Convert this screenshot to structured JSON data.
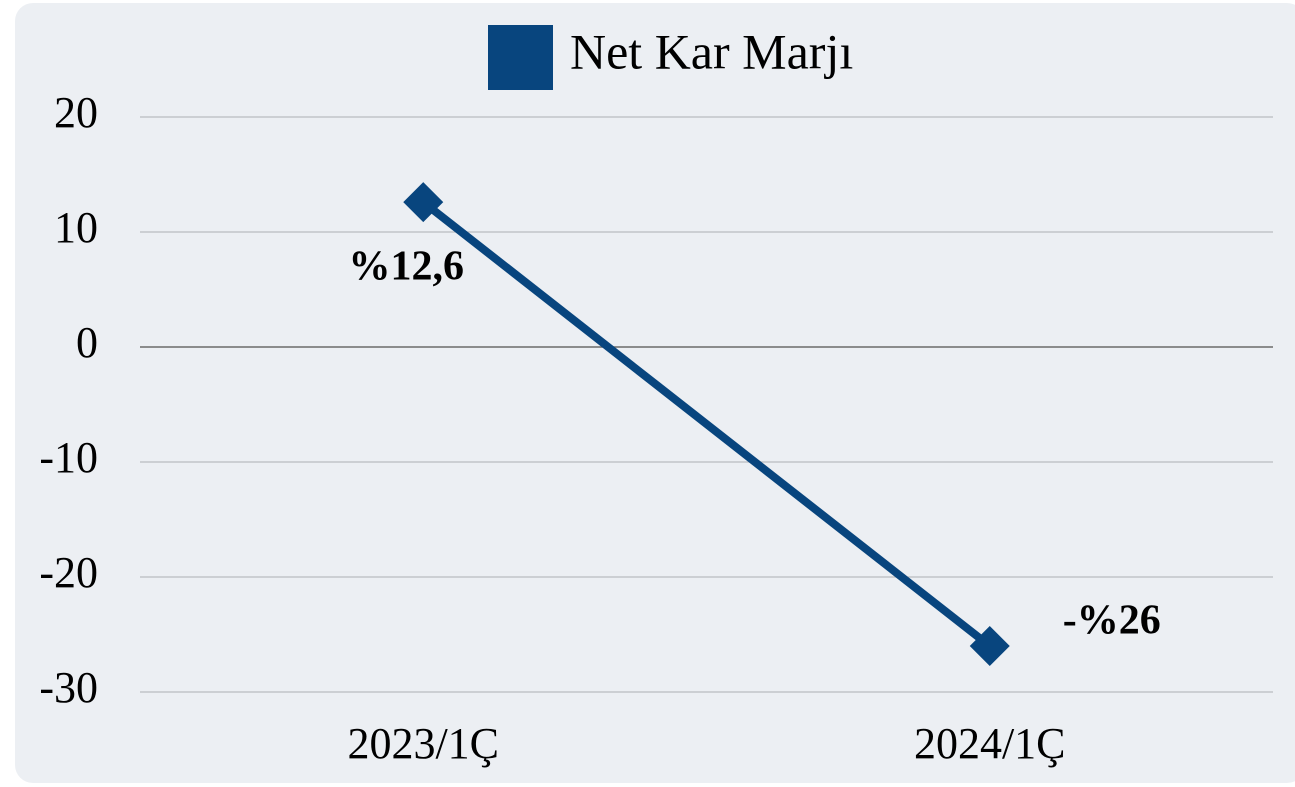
{
  "chart_data": {
    "type": "line",
    "categories": [
      "2023/1Ç",
      "2024/1Ç"
    ],
    "series": [
      {
        "name": "Net Kar Marjı",
        "color": "#08457e",
        "values": [
          12.6,
          -26
        ],
        "value_labels": [
          "%12,6",
          "-%26"
        ]
      }
    ],
    "ylim": [
      -30,
      20
    ],
    "yticks": [
      20,
      10,
      0,
      -10,
      -20,
      -30
    ],
    "grid": true,
    "legend": "top"
  }
}
